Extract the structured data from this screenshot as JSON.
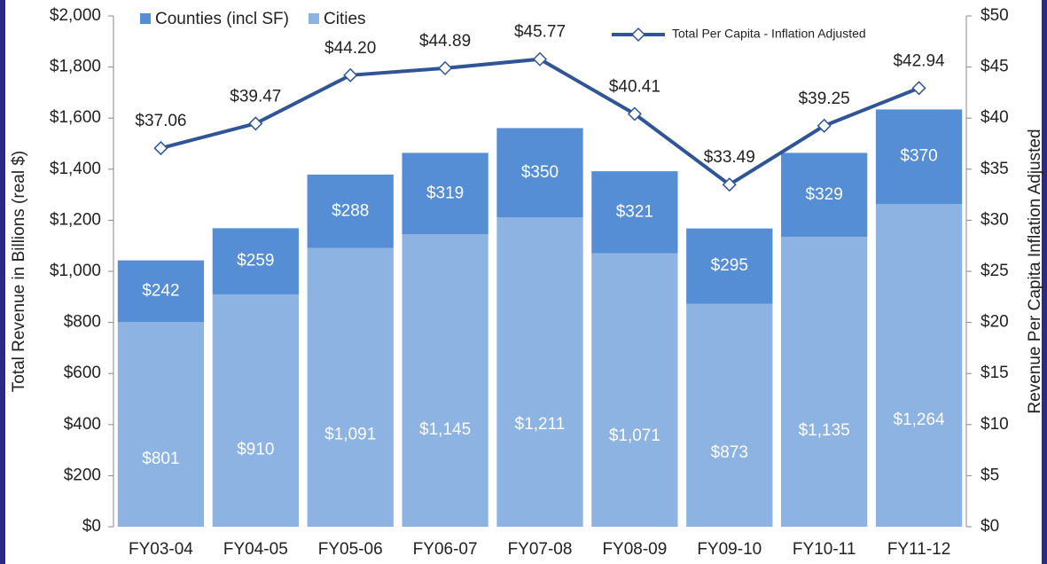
{
  "chart_data": {
    "type": "stacked-bar-line",
    "y_label": "Total Revenue in Billions (real $)",
    "y2_label": "Revenue Per Capita Inflation Adjusted",
    "categories": [
      "FY03-04",
      "FY04-05",
      "FY05-06",
      "FY06-07",
      "FY07-08",
      "FY08-09",
      "FY09-10",
      "FY10-11",
      "FY11-12"
    ],
    "series": [
      {
        "name": "Cities",
        "color": "#8db3e2",
        "values": [
          801,
          910,
          1091,
          1145,
          1211,
          1071,
          873,
          1135,
          1264
        ],
        "value_labels": [
          "$801",
          "$910",
          "$1,091",
          "$1,145",
          "$1,211",
          "$1,071",
          "$873",
          "$1,135",
          "$1,264"
        ]
      },
      {
        "name": "Counties (incl SF)",
        "color": "#558ed5",
        "values": [
          242,
          259,
          288,
          319,
          350,
          321,
          295,
          329,
          370
        ],
        "value_labels": [
          "$242",
          "$259",
          "$288",
          "$319",
          "$350",
          "$321",
          "$295",
          "$329",
          "$370"
        ]
      },
      {
        "name": "Total Per Capita - Inflation Adjusted",
        "color": "#2f5597",
        "axis": "y2",
        "type": "line",
        "values": [
          37.06,
          39.47,
          44.2,
          44.89,
          45.77,
          40.41,
          33.49,
          39.25,
          42.94
        ],
        "value_labels": [
          "$37.06",
          "$39.47",
          "$44.20",
          "$44.89",
          "$45.77",
          "$40.41",
          "$33.49",
          "$39.25",
          "$42.94"
        ]
      }
    ],
    "ylim": [
      0,
      2000
    ],
    "yticks": [
      {
        "value": 0,
        "label": "$0"
      },
      {
        "value": 200,
        "label": "$200"
      },
      {
        "value": 400,
        "label": "$400"
      },
      {
        "value": 600,
        "label": "$600"
      },
      {
        "value": 800,
        "label": "$800"
      },
      {
        "value": 1000,
        "label": "$1,000"
      },
      {
        "value": 1200,
        "label": "$1,200"
      },
      {
        "value": 1400,
        "label": "$1,400"
      },
      {
        "value": 1600,
        "label": "$1,600"
      },
      {
        "value": 1800,
        "label": "$1,800"
      },
      {
        "value": 2000,
        "label": "$2,000"
      }
    ],
    "y2lim": [
      0,
      50
    ],
    "y2ticks": [
      {
        "value": 0,
        "label": "$0"
      },
      {
        "value": 5,
        "label": "$5"
      },
      {
        "value": 10,
        "label": "$10"
      },
      {
        "value": 15,
        "label": "$15"
      },
      {
        "value": 20,
        "label": "$20"
      },
      {
        "value": 25,
        "label": "$25"
      },
      {
        "value": 30,
        "label": "$30"
      },
      {
        "value": 35,
        "label": "$35"
      },
      {
        "value": 40,
        "label": "$40"
      },
      {
        "value": 45,
        "label": "$45"
      },
      {
        "value": 50,
        "label": "$50"
      }
    ]
  }
}
